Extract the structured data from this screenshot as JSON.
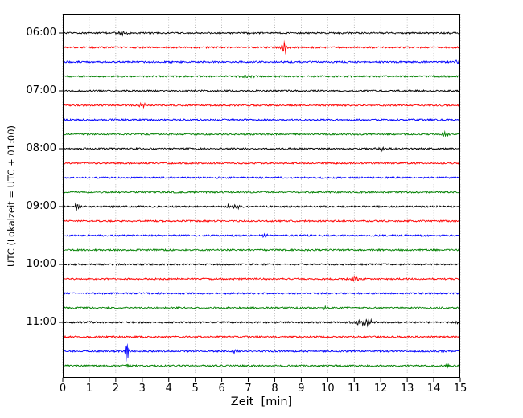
{
  "chart_data": {
    "type": "line",
    "title": "",
    "xlabel": "Zeit  [min]",
    "ylabel": "UTC (Lokalzeit = UTC + 01:00)",
    "x_range": [
      0,
      15
    ],
    "x_ticks": [
      "0",
      "1",
      "2",
      "3",
      "4",
      "5",
      "6",
      "7",
      "8",
      "9",
      "10",
      "11",
      "12",
      "13",
      "14",
      "15"
    ],
    "minutes_per_row": 15,
    "grid": "vertical-dotted",
    "noise_amplitude": 1.0,
    "trace_colors": {
      "black": "#000000",
      "red": "#ff0000",
      "blue": "#0000ff",
      "green": "#008000"
    },
    "rows": [
      {
        "time": "06:00",
        "label": "06:00",
        "color": "black",
        "events": [
          {
            "x": 2.2,
            "amp": 2.2,
            "w": 0.22,
            "f": 5
          }
        ]
      },
      {
        "time": "06:15",
        "label": "",
        "color": "red",
        "events": [
          {
            "x": 8.35,
            "amp": 9.0,
            "w": 0.09,
            "f": 2
          }
        ]
      },
      {
        "time": "06:30",
        "label": "",
        "color": "blue",
        "events": [
          {
            "x": 14.95,
            "amp": 3.5,
            "w": 0.12,
            "f": 2
          }
        ]
      },
      {
        "time": "06:45",
        "label": "",
        "color": "green",
        "events": [
          {
            "x": 7.0,
            "amp": 1.4,
            "w": 0.35,
            "f": 5
          }
        ]
      },
      {
        "time": "07:00",
        "label": "07:00",
        "color": "black",
        "events": []
      },
      {
        "time": "07:15",
        "label": "",
        "color": "red",
        "events": [
          {
            "x": 3.0,
            "amp": 3.5,
            "w": 0.13,
            "f": 3
          }
        ]
      },
      {
        "time": "07:30",
        "label": "",
        "color": "blue",
        "events": []
      },
      {
        "time": "07:45",
        "label": "",
        "color": "green",
        "events": [
          {
            "x": 14.4,
            "amp": 2.6,
            "w": 0.12,
            "f": 3
          }
        ]
      },
      {
        "time": "08:00",
        "label": "08:00",
        "color": "black",
        "events": [
          {
            "x": 12.0,
            "amp": 2.2,
            "w": 0.15,
            "f": 4
          }
        ]
      },
      {
        "time": "08:15",
        "label": "",
        "color": "red",
        "events": []
      },
      {
        "time": "08:30",
        "label": "",
        "color": "blue",
        "events": []
      },
      {
        "time": "08:45",
        "label": "",
        "color": "green",
        "events": []
      },
      {
        "time": "09:00",
        "label": "09:00",
        "color": "black",
        "events": [
          {
            "x": 0.55,
            "amp": 3.2,
            "w": 0.12,
            "f": 3
          },
          {
            "x": 6.4,
            "amp": 3.0,
            "w": 0.3,
            "f": 7
          }
        ]
      },
      {
        "time": "09:15",
        "label": "",
        "color": "red",
        "events": []
      },
      {
        "time": "09:30",
        "label": "",
        "color": "blue",
        "events": [
          {
            "x": 7.6,
            "amp": 2.0,
            "w": 0.14,
            "f": 3
          }
        ]
      },
      {
        "time": "09:45",
        "label": "",
        "color": "green",
        "events": []
      },
      {
        "time": "10:00",
        "label": "10:00",
        "color": "black",
        "events": []
      },
      {
        "time": "10:15",
        "label": "",
        "color": "red",
        "events": [
          {
            "x": 11.0,
            "amp": 3.2,
            "w": 0.18,
            "f": 4
          }
        ]
      },
      {
        "time": "10:30",
        "label": "",
        "color": "blue",
        "events": []
      },
      {
        "time": "10:45",
        "label": "",
        "color": "green",
        "events": [
          {
            "x": 9.9,
            "amp": 2.4,
            "w": 0.13,
            "f": 3
          }
        ]
      },
      {
        "time": "11:00",
        "label": "11:00",
        "color": "black",
        "events": [
          {
            "x": 1.0,
            "amp": 1.4,
            "w": 0.1,
            "f": 3
          },
          {
            "x": 11.35,
            "amp": 4.0,
            "w": 0.42,
            "f": 9
          },
          {
            "x": 14.85,
            "amp": 2.6,
            "w": 0.07,
            "f": 2
          }
        ]
      },
      {
        "time": "11:15",
        "label": "",
        "color": "red",
        "events": []
      },
      {
        "time": "11:30",
        "label": "",
        "color": "blue",
        "events": [
          {
            "x": 2.42,
            "amp": 28.0,
            "w": 0.045,
            "f": 1.6
          },
          {
            "x": 6.5,
            "amp": 1.8,
            "w": 0.15,
            "f": 3
          }
        ]
      },
      {
        "time": "11:45",
        "label": "",
        "color": "green",
        "events": [
          {
            "x": 2.42,
            "amp": 4.0,
            "w": 0.05,
            "f": 1.6
          },
          {
            "x": 11.5,
            "amp": 2.0,
            "w": 0.1,
            "f": 3
          },
          {
            "x": 14.5,
            "amp": 2.8,
            "w": 0.13,
            "f": 5
          }
        ]
      }
    ]
  }
}
